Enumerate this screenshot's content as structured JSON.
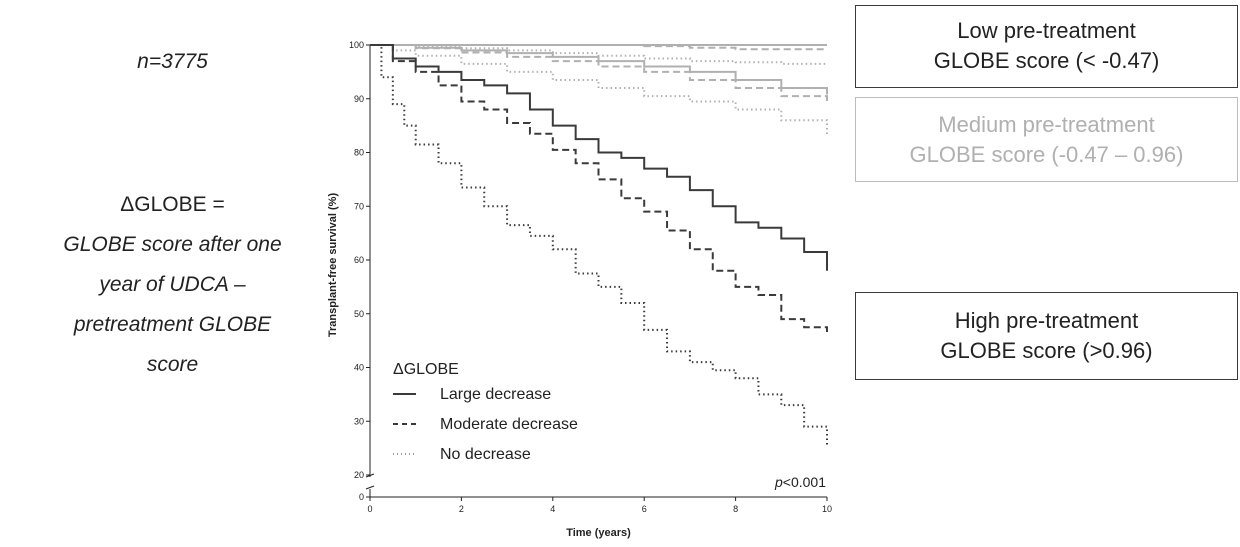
{
  "left": {
    "n_label": "n=3775",
    "delta_head": "ΔGLOBE =",
    "delta_lines": [
      "GLOBE score after one",
      "year of UDCA –",
      "pretreatment GLOBE",
      "score"
    ]
  },
  "boxes": {
    "low": [
      "Low pre-treatment",
      "GLOBE score (< -0.47)"
    ],
    "medium": [
      "Medium pre-treatment",
      "GLOBE score (-0.47 – 0.96)"
    ],
    "high": [
      "High pre-treatment",
      "GLOBE score (>0.96)"
    ]
  },
  "colors": {
    "dark": "#3a3a3a",
    "light": "#b0b0b0"
  },
  "chart_data": {
    "type": "line",
    "title": "",
    "xlabel": "Time (years)",
    "ylabel": "Transplant-free survival  (%)",
    "xlim": [
      0,
      10
    ],
    "ylim": [
      20,
      100
    ],
    "y_axis_break": true,
    "xticks": [
      0,
      2,
      4,
      6,
      8,
      10
    ],
    "yticks": [
      0,
      20,
      30,
      40,
      50,
      60,
      70,
      80,
      90,
      100
    ],
    "legend": {
      "title": "ΔGLOBE",
      "position": "bottom-left",
      "entries": [
        {
          "label": "Large decrease",
          "style": "solid"
        },
        {
          "label": "Moderate decrease",
          "style": "dashed"
        },
        {
          "label": "No decrease",
          "style": "dotted"
        }
      ]
    },
    "annotation": {
      "prefix": "p",
      "text": "<0.001"
    },
    "series": [
      {
        "group": "low",
        "style": "solid",
        "color": "light",
        "x": [
          0,
          1,
          2,
          4,
          6,
          8,
          10
        ],
        "y": [
          100,
          100,
          100,
          100,
          100,
          100,
          100
        ]
      },
      {
        "group": "low",
        "style": "dashed",
        "color": "light",
        "x": [
          0,
          1,
          2,
          4,
          5,
          6,
          7,
          8,
          9,
          10
        ],
        "y": [
          100,
          100,
          100,
          100,
          100,
          99.8,
          99.5,
          99.2,
          99.2,
          99.2
        ]
      },
      {
        "group": "low",
        "style": "dotted",
        "color": "light",
        "x": [
          0,
          1,
          2,
          3,
          4,
          5,
          6,
          7,
          8,
          9,
          10
        ],
        "y": [
          100,
          99.8,
          99.4,
          99,
          98.5,
          98,
          97.5,
          97,
          96.8,
          96.5,
          96.3
        ]
      },
      {
        "group": "medium",
        "style": "solid",
        "color": "light",
        "x": [
          0,
          1,
          2,
          3,
          4,
          5,
          6,
          7,
          8,
          9,
          10
        ],
        "y": [
          100,
          99.5,
          99,
          98.5,
          97.8,
          97,
          96,
          95,
          93.5,
          92,
          90.8
        ]
      },
      {
        "group": "medium",
        "style": "dashed",
        "color": "light",
        "x": [
          0,
          1,
          2,
          3,
          4,
          5,
          6,
          7,
          8,
          9,
          10
        ],
        "y": [
          100,
          99.4,
          98.6,
          97.8,
          97,
          96,
          95,
          93.5,
          92,
          90.5,
          89.2
        ]
      },
      {
        "group": "medium",
        "style": "dotted",
        "color": "light",
        "x": [
          0,
          0.5,
          1,
          2,
          3,
          4,
          5,
          6,
          7,
          8,
          9,
          10
        ],
        "y": [
          100,
          99,
          98,
          96.5,
          95,
          93.5,
          92,
          90.5,
          89.5,
          88,
          86,
          83
        ]
      },
      {
        "group": "high",
        "style": "solid",
        "color": "dark",
        "x": [
          0,
          0.5,
          1,
          1.5,
          2,
          2.5,
          3,
          3.5,
          4,
          4.5,
          5,
          5.5,
          6,
          6.5,
          7,
          7.5,
          8,
          8.5,
          9,
          9.5,
          10
        ],
        "y": [
          100,
          97.5,
          96,
          95,
          93.5,
          92.5,
          91,
          88,
          85,
          82.5,
          80,
          79,
          77,
          75.5,
          73,
          70,
          67,
          66,
          64,
          61.5,
          58
        ]
      },
      {
        "group": "high",
        "style": "dashed",
        "color": "dark",
        "x": [
          0,
          0.5,
          1,
          1.5,
          2,
          2.5,
          3,
          3.5,
          4,
          4.5,
          5,
          5.5,
          6,
          6.5,
          7,
          7.5,
          8,
          8.5,
          9,
          9.5,
          10
        ],
        "y": [
          100,
          97,
          95,
          92.5,
          89.5,
          88,
          85.5,
          83.5,
          80.5,
          78,
          75,
          71.5,
          69,
          65.5,
          62,
          58,
          55,
          53.5,
          49,
          47.5,
          46
        ]
      },
      {
        "group": "high",
        "style": "dotted",
        "color": "dark",
        "x": [
          0,
          0.25,
          0.5,
          0.75,
          1,
          1.5,
          2,
          2.5,
          3,
          3.5,
          4,
          4.5,
          5,
          5.5,
          6,
          6.5,
          7,
          7.5,
          8,
          8.5,
          9,
          9.5,
          10
        ],
        "y": [
          100,
          94,
          89,
          85,
          81.5,
          78,
          73.5,
          70,
          66.5,
          64.5,
          62,
          57.5,
          55,
          52,
          47,
          43,
          41,
          39.5,
          38,
          35,
          33,
          29,
          25.5
        ]
      }
    ]
  }
}
